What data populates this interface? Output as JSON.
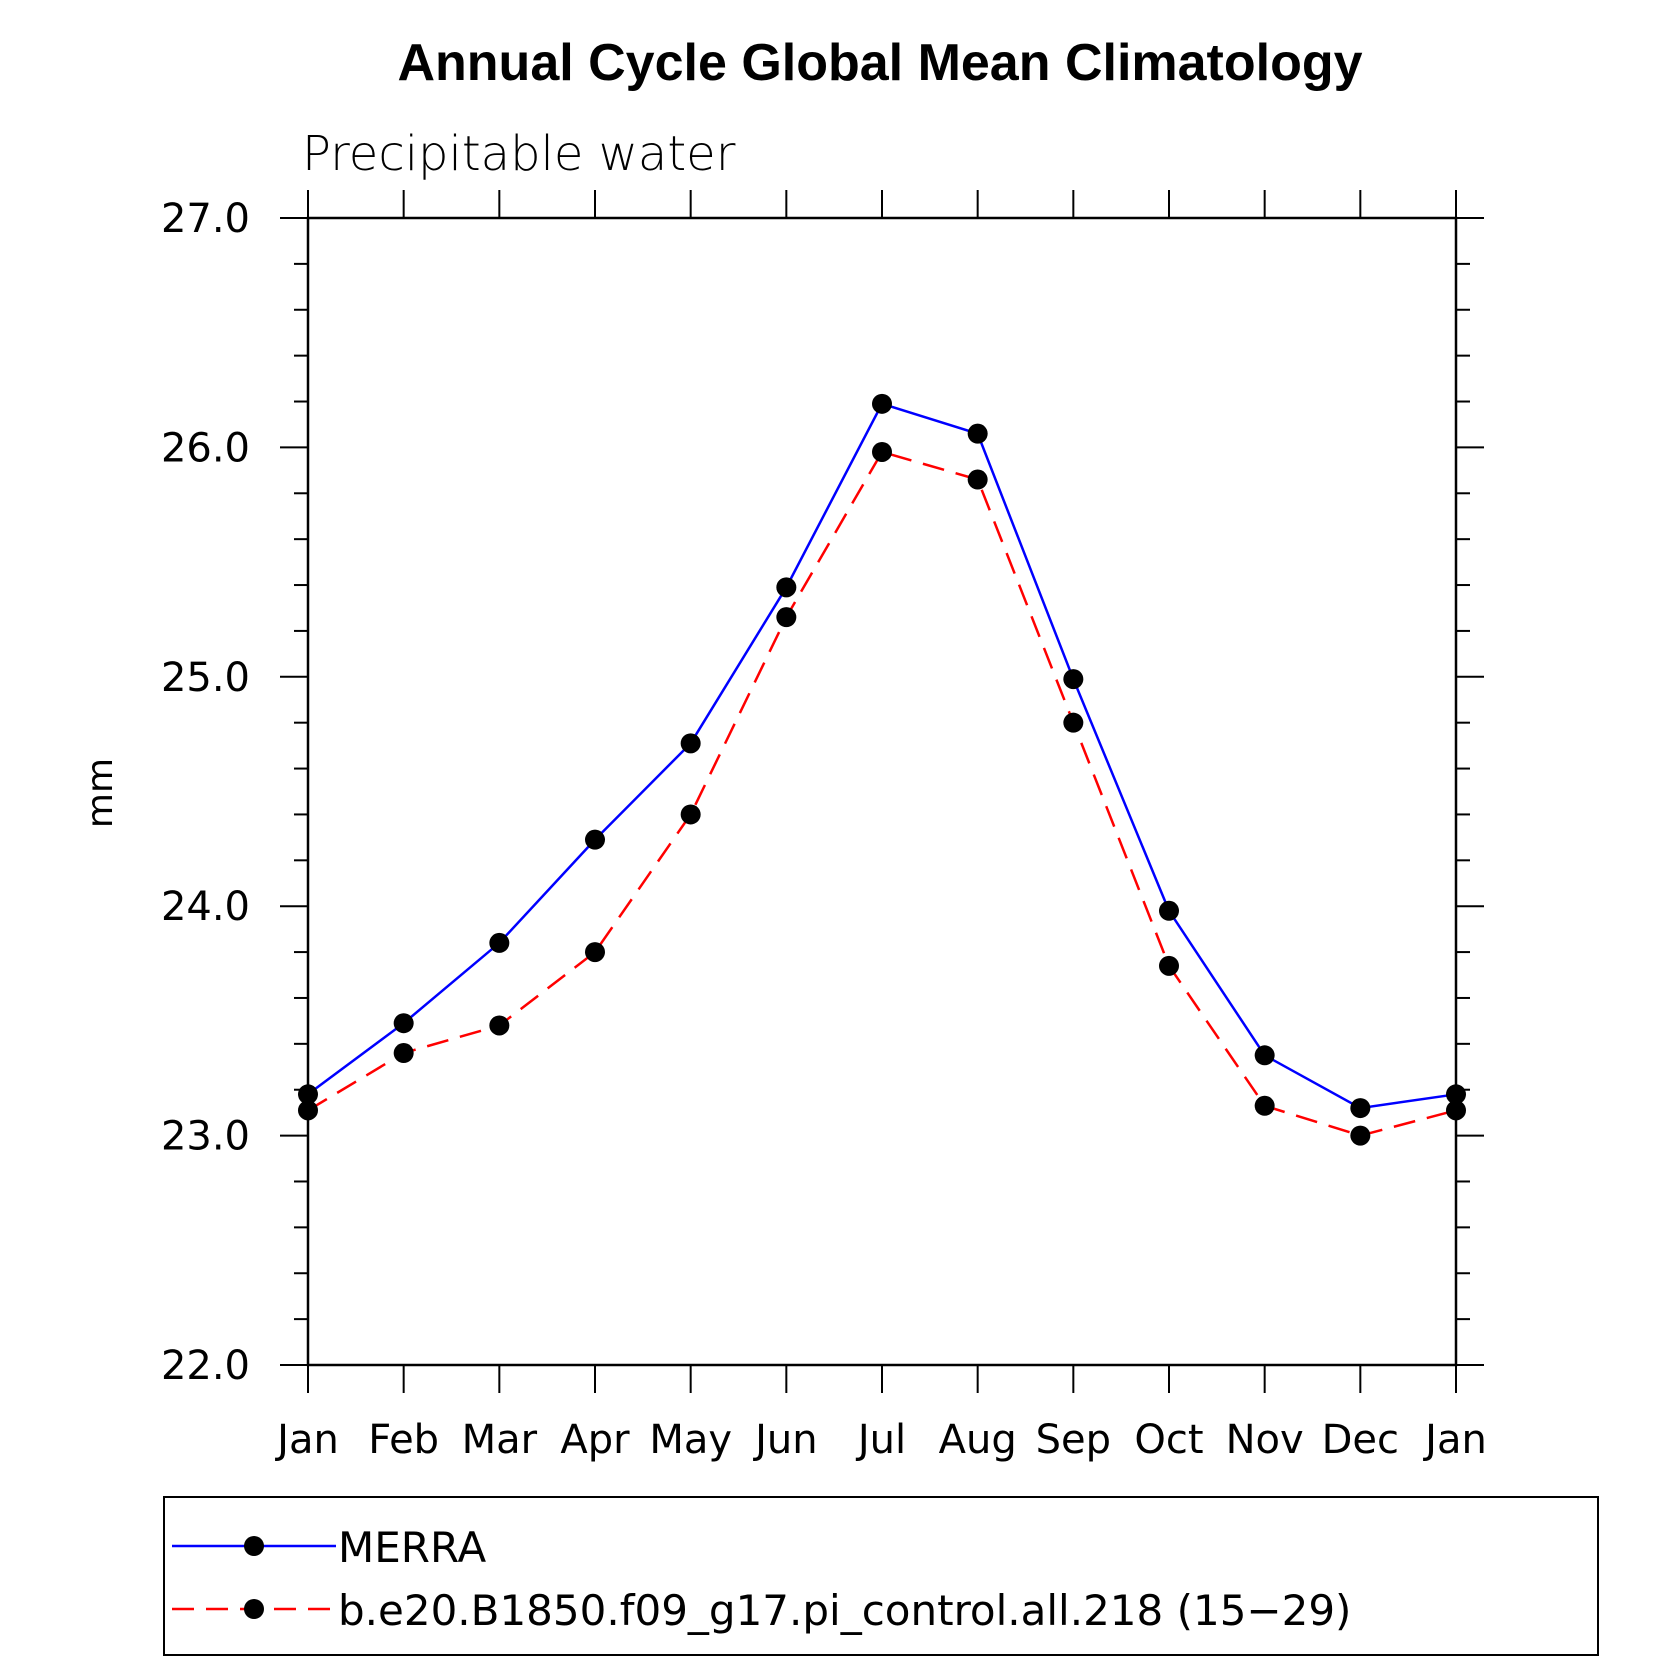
{
  "chart_data": {
    "type": "line",
    "title": "Annual Cycle Global Mean Climatology",
    "subtitle": "Precipitable water",
    "ylabel": "mm",
    "xlabel": "",
    "categories": [
      "Jan",
      "Feb",
      "Mar",
      "Apr",
      "May",
      "Jun",
      "Jul",
      "Aug",
      "Sep",
      "Oct",
      "Nov",
      "Dec",
      "Jan"
    ],
    "ylim": [
      22.0,
      27.0
    ],
    "yticks": [
      "22.0",
      "23.0",
      "24.0",
      "25.0",
      "26.0",
      "27.0"
    ],
    "series": [
      {
        "name": "MERRA",
        "color": "#0000ff",
        "dash": "solid",
        "values": [
          23.18,
          23.49,
          23.84,
          24.29,
          24.71,
          25.39,
          26.19,
          26.06,
          24.99,
          23.98,
          23.35,
          23.12,
          23.18
        ]
      },
      {
        "name": "b.e20.B1850.f09_g17.pi_control.all.218 (15−29)",
        "color": "#ff0000",
        "dash": "dashed",
        "values": [
          23.11,
          23.36,
          23.48,
          23.8,
          24.4,
          25.26,
          25.98,
          25.86,
          24.8,
          23.74,
          23.13,
          23.0,
          23.11
        ]
      }
    ],
    "grid": false,
    "legend_position": "bottom"
  }
}
